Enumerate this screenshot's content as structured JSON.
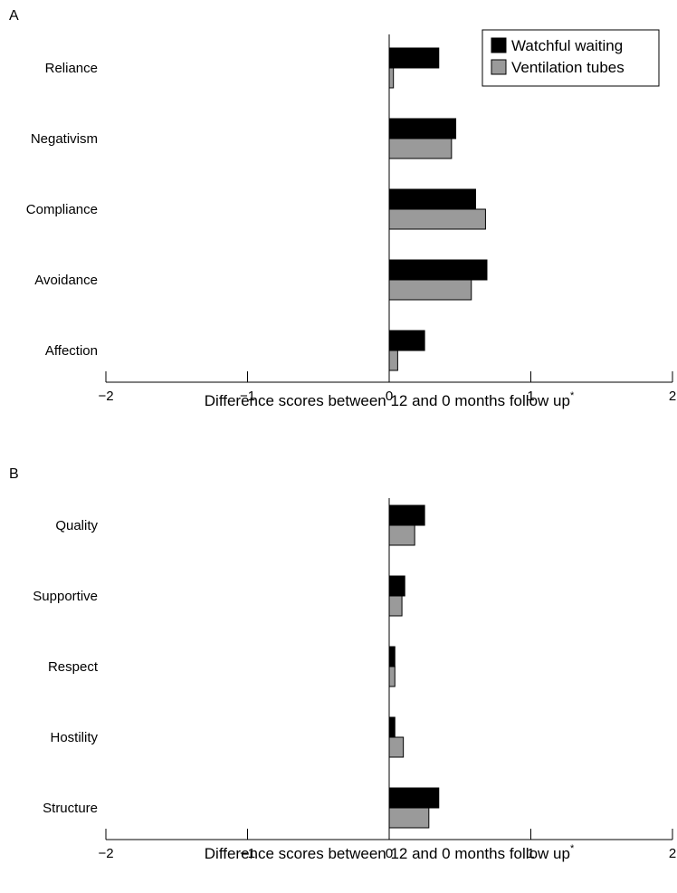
{
  "colors": {
    "watchful": "#000000",
    "ventilation": "#9a9a9a",
    "axis": "#000000",
    "background": "#ffffff"
  },
  "legend": {
    "placement": "top-right",
    "entries": [
      "Watchful waiting",
      "Ventilation tubes"
    ]
  },
  "chart_data": [
    {
      "type": "bar",
      "orientation": "horizontal",
      "panel_label": "A",
      "categories": [
        "Reliance",
        "Negativism",
        "Compliance",
        "Avoidance",
        "Affection"
      ],
      "series": [
        {
          "name": "Watchful waiting",
          "values": [
            0.35,
            0.47,
            0.61,
            0.69,
            0.25
          ]
        },
        {
          "name": "Ventilation tubes",
          "values": [
            0.03,
            0.44,
            0.68,
            0.58,
            0.06
          ]
        }
      ],
      "xlabel": "Difference scores between 12 and 0 months follow up",
      "xlabel_mark": "*",
      "xlim": [
        -2,
        2
      ],
      "xticks": [
        -2,
        -1,
        0,
        1,
        2
      ],
      "xtick_labels": [
        "−2",
        "−1",
        "0",
        "1",
        "2"
      ],
      "grid": false,
      "legend": true
    },
    {
      "type": "bar",
      "orientation": "horizontal",
      "panel_label": "B",
      "categories": [
        "Quality",
        "Supportive",
        "Respect",
        "Hostility",
        "Structure"
      ],
      "series": [
        {
          "name": "Watchful waiting",
          "values": [
            0.25,
            0.11,
            0.04,
            0.04,
            0.35
          ]
        },
        {
          "name": "Ventilation tubes",
          "values": [
            0.18,
            0.09,
            0.04,
            0.1,
            0.28
          ]
        }
      ],
      "xlabel": "Difference scores between 12 and 0 months follow up",
      "xlabel_mark": "*",
      "xlim": [
        -2,
        2
      ],
      "xticks": [
        -2,
        -1,
        0,
        1,
        2
      ],
      "xtick_labels": [
        "−2",
        "−1",
        "0",
        "1",
        "2"
      ],
      "grid": false,
      "legend": false
    }
  ]
}
